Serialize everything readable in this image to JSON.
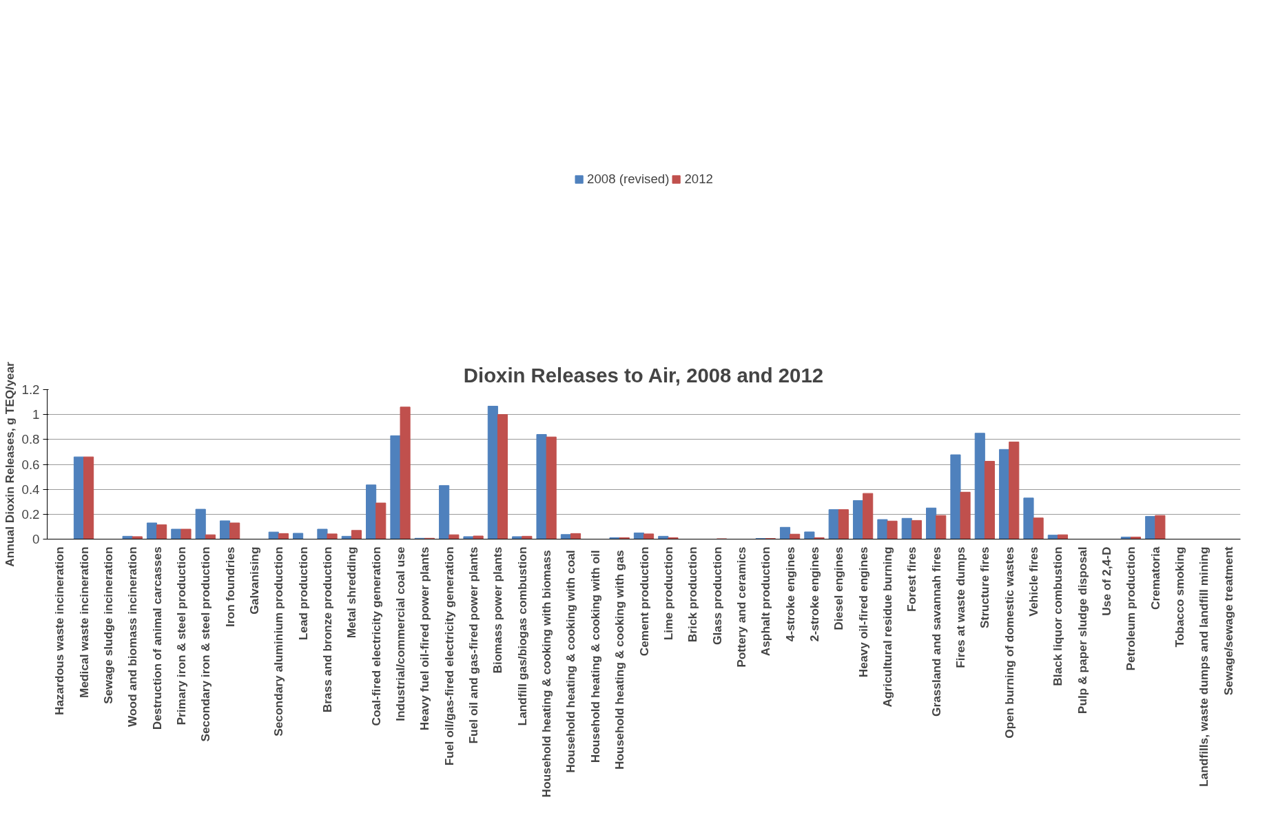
{
  "chart_data": {
    "type": "bar",
    "title": "Dioxin Releases to Air, 2008 and 2012",
    "ylabel": "Annual Dioxin Releases, g TEQ/year",
    "categories": [
      "Hazardous waste incineration",
      "Medical waste incineration",
      "Sewage sludge incineration",
      "Wood and biomass incineration",
      "Destruction of animal carcasses",
      "Primary iron & steel production",
      "Secondary iron & steel production",
      "Iron foundries",
      "Galvanising",
      "Secondary aluminium production",
      "Lead production",
      "Brass and bronze production",
      "Metal shredding",
      "Coal-fired electricity generation",
      "Industrial/commercial coal use",
      "Heavy fuel oil-fired power plants",
      "Fuel oil/gas-fired electricity generation",
      "Fuel oil and gas-fired power plants",
      "Biomass power plants",
      "Landfill gas/biogas combustion",
      "Household heating & cooking  with biomass",
      "Household heating & cooking  with coal",
      "Household heating & cooking  with oil",
      "Household heating & cooking  with gas",
      "Cement production",
      "Lime production",
      "Brick production",
      "Glass production",
      "Pottery and ceramics",
      "Asphalt production",
      "4-stroke engines",
      "2-stroke engines",
      "Diesel engines",
      "Heavy oil-fired engines",
      "Agricultural residue burning",
      "Forest fires",
      "Grassland and savannah fires",
      "Fires at waste dumps",
      "Structure fires",
      "Open burning of domestic wastes",
      "Vehicle fires",
      "Black liquor combustion",
      "Pulp & paper sludge disposal",
      "Use of 2,4-D",
      "Petroleum production",
      "Crematoria",
      "Tobacco smoking",
      "Landfills, waste dumps and landfill mining",
      "Sewage/sewage treatment"
    ],
    "series": [
      {
        "name": "2008 (revised)",
        "color": "#4f81bd",
        "values": [
          0,
          0.66,
          0,
          0.023,
          0.13,
          0.08,
          0.24,
          0.147,
          0,
          0.057,
          0.047,
          0.08,
          0.023,
          0.435,
          0.83,
          0.007,
          0.43,
          0.02,
          1.067,
          0.02,
          0.84,
          0.037,
          0,
          0.012,
          0.05,
          0.023,
          0,
          0,
          0,
          0.005,
          0.095,
          0.058,
          0.237,
          0.31,
          0.157,
          0.167,
          0.25,
          0.677,
          0.85,
          0.72,
          0.33,
          0.032,
          0,
          0,
          0.017,
          0.183,
          0,
          0,
          0
        ]
      },
      {
        "name": "2012",
        "color": "#c0504d",
        "values": [
          0,
          0.66,
          0,
          0.02,
          0.115,
          0.08,
          0.035,
          0.13,
          0,
          0.045,
          0,
          0.042,
          0.07,
          0.29,
          1.06,
          0.007,
          0.035,
          0.025,
          1.0,
          0.023,
          0.82,
          0.045,
          0,
          0.012,
          0.042,
          0.012,
          0,
          0.003,
          0,
          0.005,
          0.04,
          0.012,
          0.237,
          0.367,
          0.145,
          0.15,
          0.19,
          0.377,
          0.625,
          0.78,
          0.17,
          0.035,
          0,
          0,
          0.017,
          0.19,
          0,
          0,
          0
        ]
      }
    ],
    "ylim": [
      0,
      1.2
    ],
    "yticks": [
      0,
      0.2,
      0.4,
      0.6,
      0.8,
      1,
      1.2
    ],
    "grid": "y",
    "legend": "top"
  }
}
